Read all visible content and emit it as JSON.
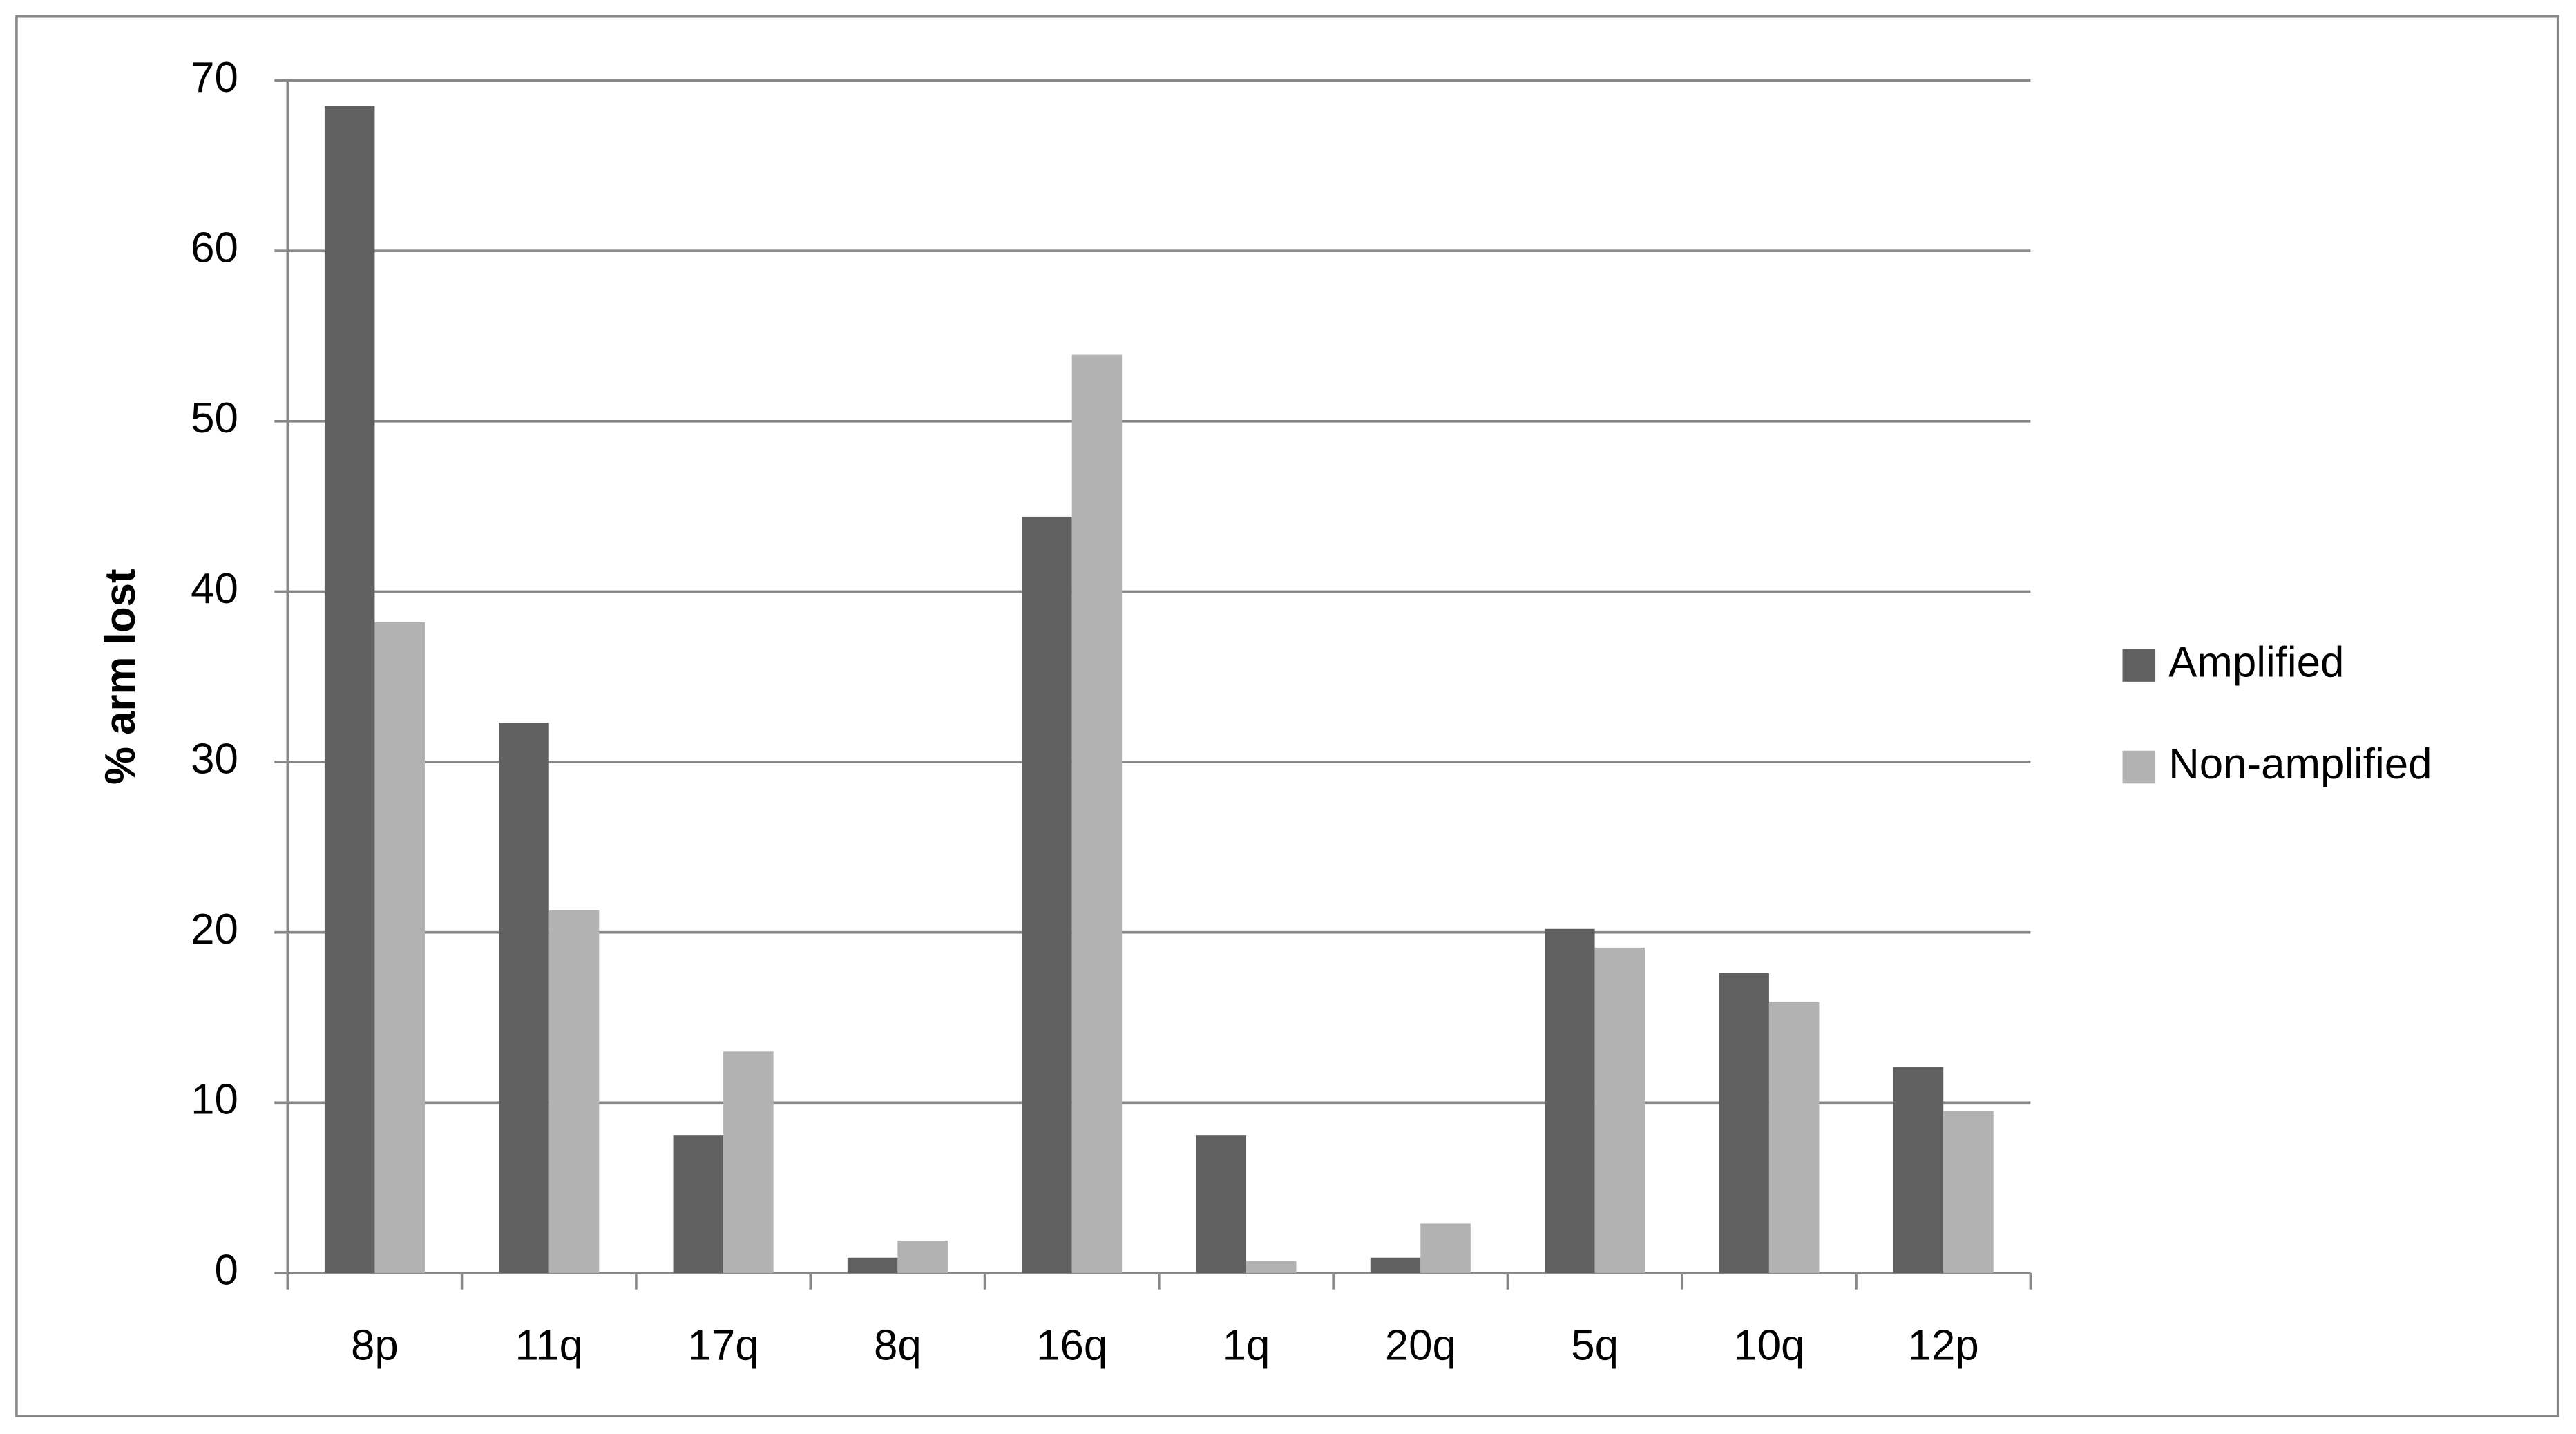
{
  "chart_data": {
    "type": "bar",
    "y_label": "%  arm lost",
    "categories": [
      "8p",
      "11q",
      "17q",
      "8q",
      "16q",
      "1q",
      "20q",
      "5q",
      "10q",
      "12p"
    ],
    "series": [
      {
        "name": "Amplified",
        "color": "#606060",
        "values": [
          68.5,
          32.3,
          8.1,
          0.9,
          44.4,
          8.1,
          0.9,
          20.2,
          17.6,
          12.1
        ]
      },
      {
        "name": "Non-amplified",
        "color": "#b2b2b2",
        "values": [
          38.2,
          21.3,
          13.0,
          1.9,
          53.9,
          0.7,
          2.9,
          19.1,
          15.9,
          9.5
        ]
      }
    ],
    "ylim": [
      0,
      70
    ],
    "yticks": [
      0,
      10,
      20,
      30,
      40,
      50,
      60,
      70
    ],
    "grid": true,
    "legend": "right"
  }
}
